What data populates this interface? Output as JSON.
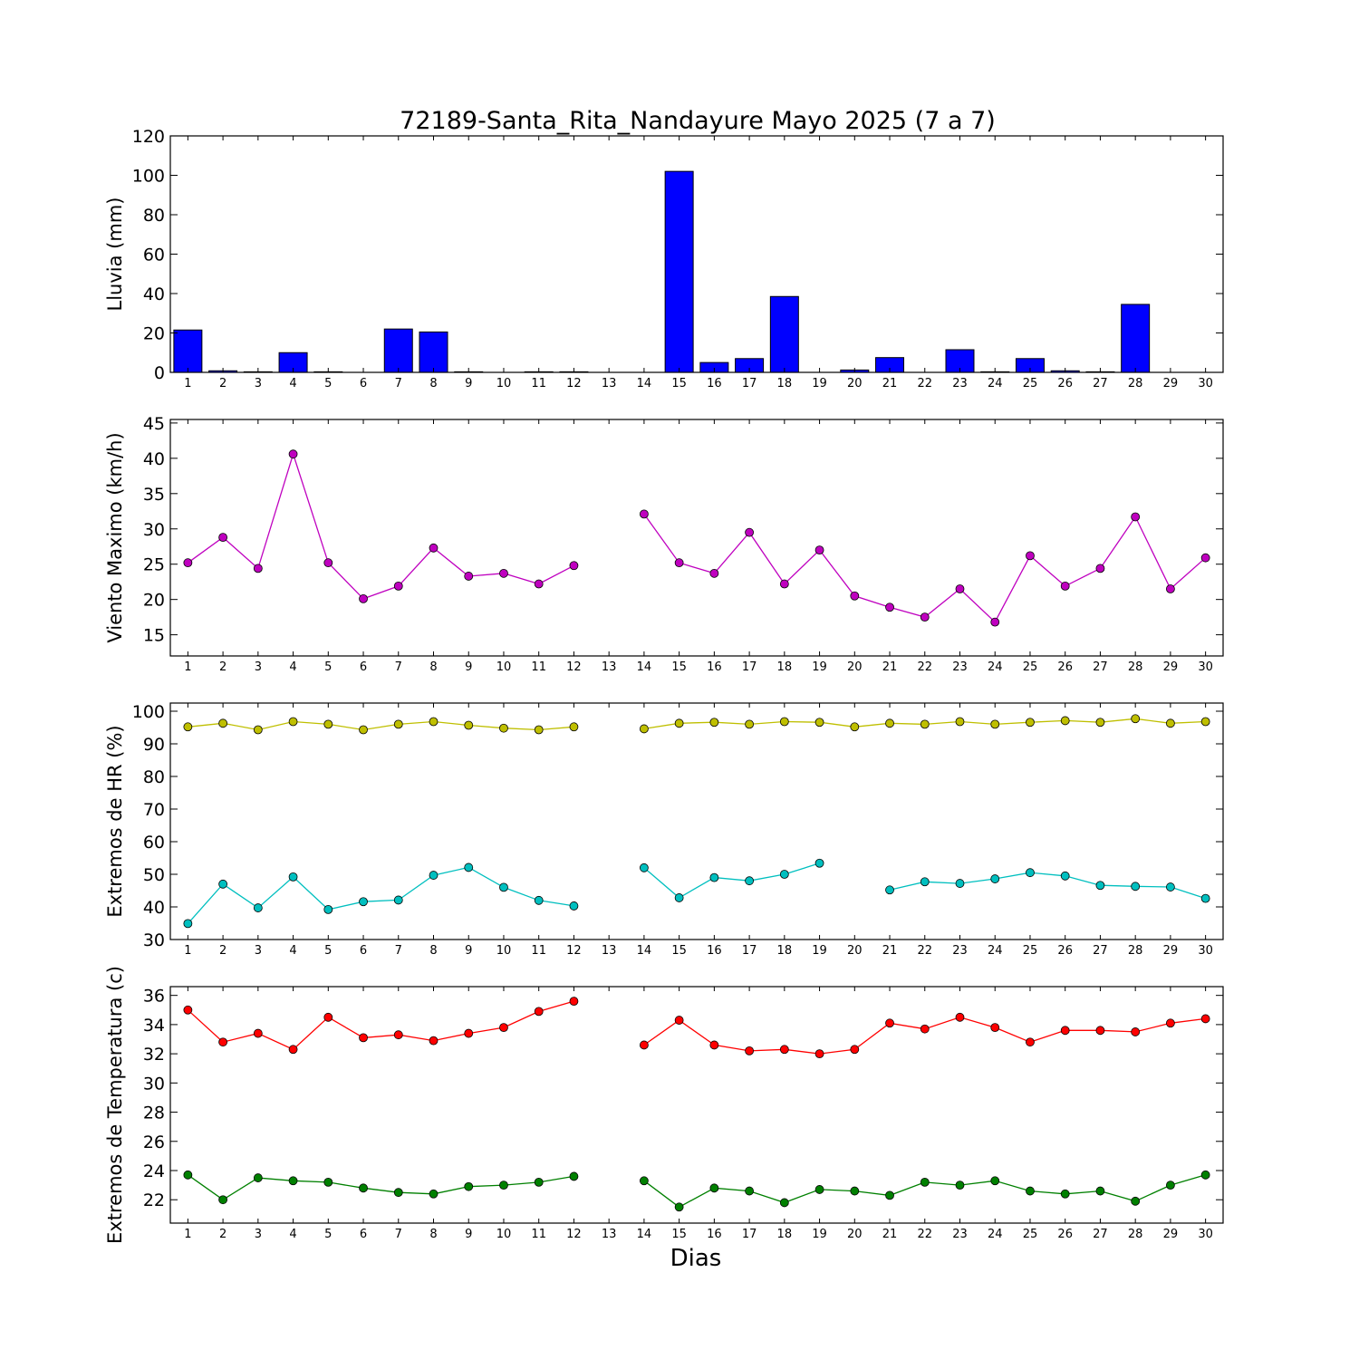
{
  "chart_data": {
    "title": "72189-Santa_Rita_Nandayure Mayo 2025  (7 a 7)",
    "xlabel": "Dias",
    "x": [
      1,
      2,
      3,
      4,
      5,
      6,
      7,
      8,
      9,
      10,
      11,
      12,
      13,
      14,
      15,
      16,
      17,
      18,
      19,
      20,
      21,
      22,
      23,
      24,
      25,
      26,
      27,
      28,
      29,
      30
    ],
    "panels": [
      {
        "type": "bar",
        "ylabel": "Lluvia (mm)",
        "ylim": [
          0,
          120
        ],
        "yticks": [
          0,
          20,
          40,
          60,
          80,
          100,
          120
        ],
        "series": [
          {
            "color": "#0000ff",
            "values": [
              21.5,
              0.8,
              0.3,
              10,
              0.3,
              0,
              22,
              20.5,
              0.3,
              0,
              0.3,
              0.3,
              0,
              0,
              102,
              5,
              7,
              38.5,
              0,
              1.2,
              7.5,
              0,
              11.5,
              0.3,
              7,
              0.8,
              0.3,
              34.5,
              0,
              0
            ]
          }
        ]
      },
      {
        "type": "line",
        "ylabel": "Viento Maximo (km/h)",
        "ylim": [
          12,
          45.5
        ],
        "yticks": [
          15,
          20,
          25,
          30,
          35,
          40,
          45
        ],
        "series": [
          {
            "color": "#bf00bf",
            "values": [
              25.2,
              28.8,
              24.4,
              40.6,
              25.2,
              20.1,
              21.9,
              27.3,
              23.3,
              23.7,
              22.2,
              24.8,
              null,
              32.1,
              25.2,
              23.7,
              29.5,
              22.2,
              27.0,
              20.5,
              18.9,
              17.5,
              21.5,
              16.8,
              26.2,
              21.9,
              24.4,
              31.7,
              21.5,
              25.9
            ]
          }
        ]
      },
      {
        "type": "line",
        "ylabel": "Extremos de HR (%)",
        "ylim": [
          30,
          102.5
        ],
        "yticks": [
          30,
          40,
          50,
          60,
          70,
          80,
          90,
          100
        ],
        "series": [
          {
            "color": "#bfbf00",
            "values": [
              95.2,
              96.3,
              94.3,
              96.8,
              96.0,
              94.3,
              96.0,
              96.8,
              95.7,
              94.8,
              94.3,
              95.2,
              null,
              94.6,
              96.3,
              96.6,
              96.0,
              96.8,
              96.6,
              95.2,
              96.3,
              96.0,
              96.8,
              96.0,
              96.6,
              97.1,
              96.6,
              97.7,
              96.3,
              96.8
            ]
          },
          {
            "color": "#00bfbf",
            "values": [
              34.9,
              47.0,
              39.7,
              49.2,
              39.2,
              41.6,
              42.1,
              49.7,
              52.1,
              46.0,
              42.0,
              40.3,
              null,
              52.0,
              42.8,
              49.0,
              48.0,
              50.0,
              53.4,
              null,
              45.2,
              47.7,
              47.2,
              48.6,
              50.5,
              49.5,
              46.6,
              46.3,
              46.1,
              42.6
            ]
          }
        ]
      },
      {
        "type": "line",
        "ylabel": "Extremos de Temperatura (c)",
        "ylim": [
          20.4,
          36.6
        ],
        "yticks": [
          22,
          24,
          26,
          28,
          30,
          32,
          34,
          36
        ],
        "series": [
          {
            "color": "#ff0000",
            "values": [
              35.0,
              32.8,
              33.4,
              32.3,
              34.5,
              33.1,
              33.3,
              32.9,
              33.4,
              33.8,
              34.9,
              35.6,
              null,
              32.6,
              34.3,
              32.6,
              32.2,
              32.3,
              32.0,
              32.3,
              34.1,
              33.7,
              34.5,
              33.8,
              32.8,
              33.6,
              33.6,
              33.5,
              34.1,
              34.4
            ]
          },
          {
            "color": "#008000",
            "values": [
              23.7,
              22.0,
              23.5,
              23.3,
              23.2,
              22.8,
              22.5,
              22.4,
              22.9,
              23.0,
              23.2,
              23.6,
              null,
              23.3,
              21.5,
              22.8,
              22.6,
              21.8,
              22.7,
              22.6,
              22.3,
              23.2,
              23.0,
              23.3,
              22.6,
              22.4,
              22.6,
              21.9,
              23.0,
              23.7
            ]
          }
        ]
      }
    ]
  }
}
